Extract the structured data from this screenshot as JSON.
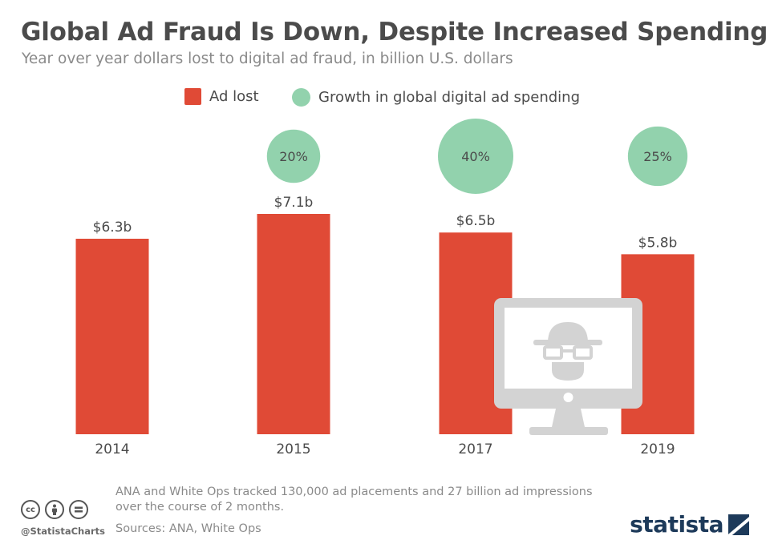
{
  "header": {
    "title": "Global Ad Fraud Is Down, Despite Increased Spending",
    "subtitle": "Year over year dollars lost to digital ad fraud, in billion U.S. dollars"
  },
  "legend": {
    "ad_lost": "Ad lost",
    "growth": "Growth in global digital ad spending"
  },
  "colors": {
    "bar": "#e04a36",
    "bubble": "#92d2ad",
    "text": "#4b4b4b",
    "muted": "#8a8a8a",
    "monitor": "#d3d3d3"
  },
  "chart_data": {
    "type": "bar",
    "categories": [
      "2014",
      "2015",
      "2017",
      "2019"
    ],
    "series": [
      {
        "name": "Ad lost",
        "values": [
          6.3,
          7.1,
          6.5,
          5.8
        ],
        "labels": [
          "$6.3b",
          "$7.1b",
          "$6.5b",
          "$5.8b"
        ]
      },
      {
        "name": "Growth in global digital ad spending",
        "values": [
          null,
          20,
          40,
          25
        ],
        "labels": [
          "",
          "20%",
          "40%",
          "25%"
        ]
      }
    ],
    "ylim": [
      0,
      7.1
    ],
    "grid": false,
    "legend_position": "top-center",
    "illustration": "monitor-with-hacker-icon"
  },
  "footer": {
    "note": "ANA and White Ops tracked 130,000 ad placements and 27 billion ad impressions over the course of 2 months.",
    "sources": "Sources: ANA, White Ops",
    "handle": "@StatistaCharts",
    "brand": "statista",
    "license_icons": [
      "cc",
      "by",
      "nd"
    ]
  }
}
